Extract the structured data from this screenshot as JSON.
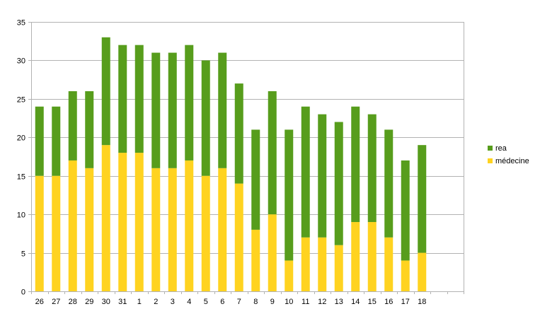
{
  "chart_data": {
    "type": "bar",
    "stacked": true,
    "categories": [
      "26",
      "27",
      "28",
      "29",
      "30",
      "31",
      "1",
      "2",
      "3",
      "4",
      "5",
      "6",
      "7",
      "8",
      "9",
      "10",
      "11",
      "12",
      "13",
      "14",
      "15",
      "16",
      "17",
      "18"
    ],
    "series": [
      {
        "name": "médecine",
        "color": "#ffd320",
        "values": [
          15,
          15,
          17,
          16,
          19,
          18,
          18,
          16,
          16,
          17,
          15,
          16,
          14,
          8,
          10,
          4,
          7,
          7,
          6,
          9,
          9,
          7,
          4,
          5
        ]
      },
      {
        "name": "rea",
        "color": "#579d1c",
        "values": [
          9,
          9,
          9,
          10,
          14,
          14,
          14,
          15,
          15,
          15,
          15,
          15,
          13,
          13,
          16,
          17,
          17,
          16,
          16,
          15,
          14,
          14,
          13,
          14
        ]
      }
    ],
    "category_slots": 26,
    "ylim": [
      0,
      35
    ],
    "yticks": [
      0,
      5,
      10,
      15,
      20,
      25,
      30,
      35
    ],
    "grid": true,
    "legend_position": "right",
    "legend_order": [
      "rea",
      "médecine"
    ],
    "title": "",
    "xlabel": "",
    "ylabel": ""
  }
}
